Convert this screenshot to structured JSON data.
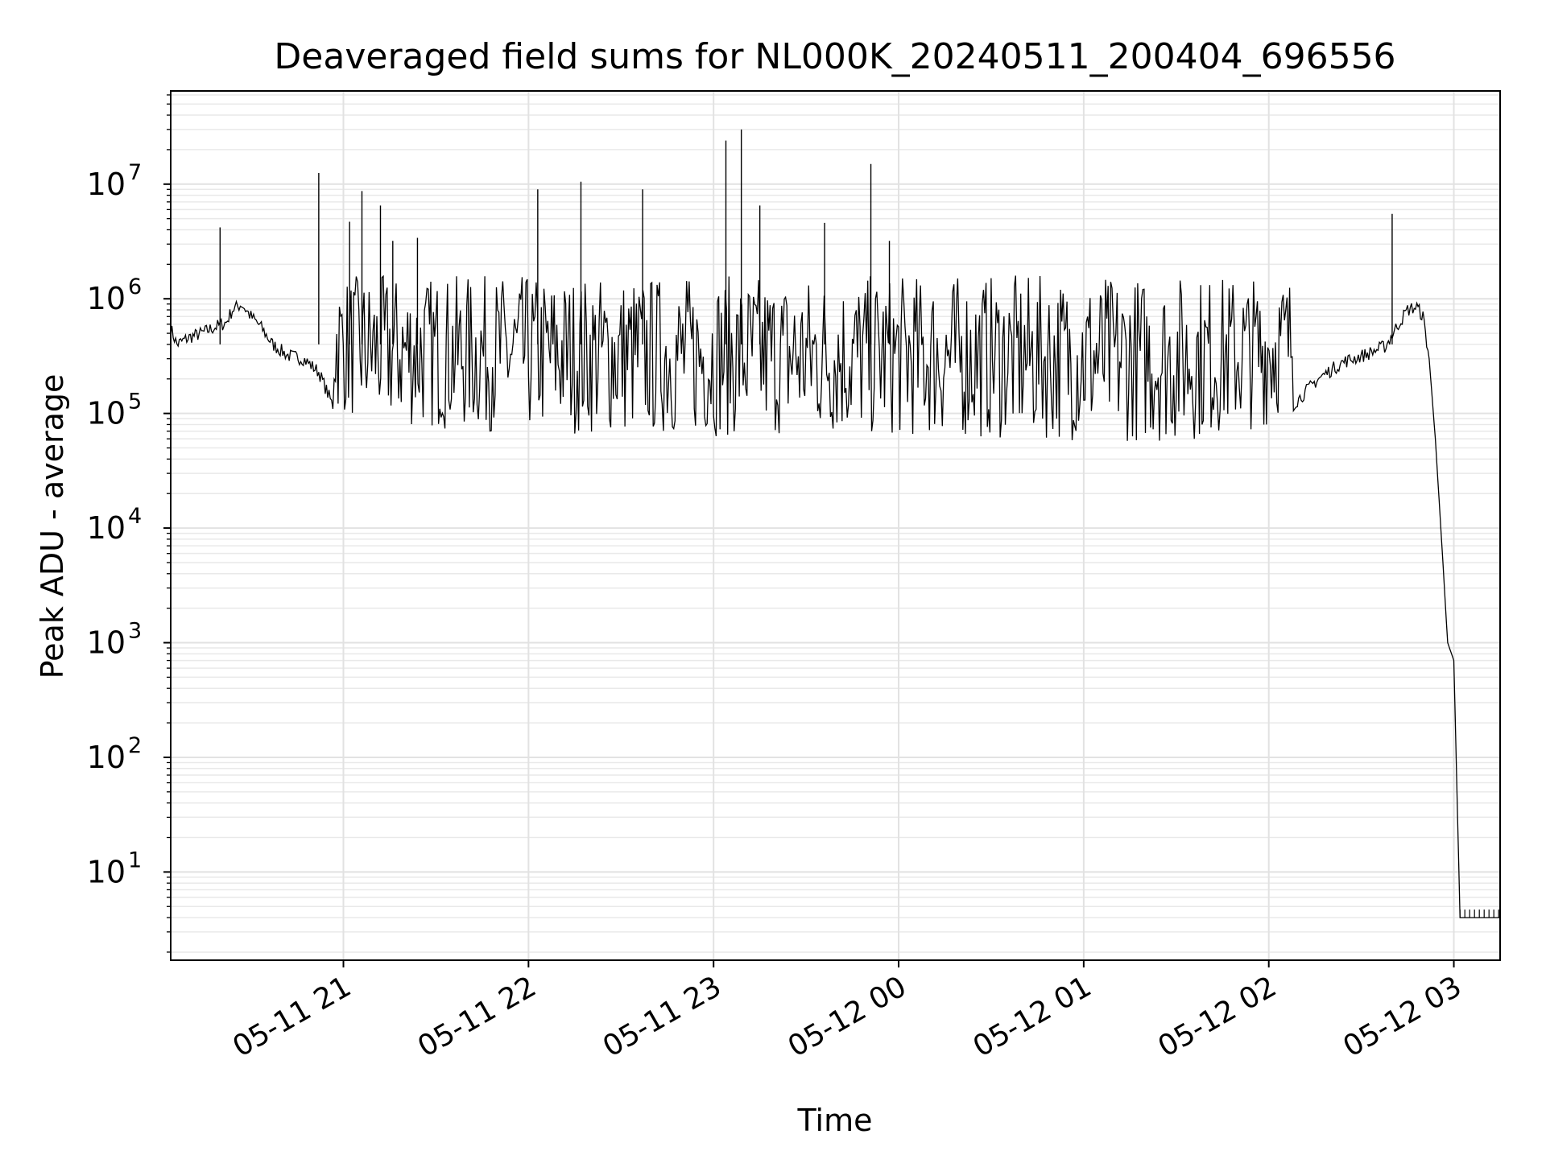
{
  "chart_data": {
    "type": "line",
    "title": "Deaveraged field sums for NL000K_20240511_200404_696556",
    "xlabel": "Time",
    "ylabel": "Peak ADU - average",
    "yscale": "log",
    "grid": "on (major and minor, light gray)",
    "line_color": "#000000",
    "xlim": [
      "2024-05-11 20:04",
      "2024-05-12 03:15"
    ],
    "ylim": [
      1.7,
      65000000
    ],
    "x_ticks": [
      {
        "label": "05-11 21",
        "time": "2024-05-11 21:00"
      },
      {
        "label": "05-11 22",
        "time": "2024-05-11 22:00"
      },
      {
        "label": "05-11 23",
        "time": "2024-05-11 23:00"
      },
      {
        "label": "05-12 00",
        "time": "2024-05-12 00:00"
      },
      {
        "label": "05-12 01",
        "time": "2024-05-12 01:00"
      },
      {
        "label": "05-12 02",
        "time": "2024-05-12 02:00"
      },
      {
        "label": "05-12 03",
        "time": "2024-05-12 03:00"
      }
    ],
    "y_ticks": [
      {
        "base": "10",
        "exp": "1",
        "value": 10
      },
      {
        "base": "10",
        "exp": "2",
        "value": 100
      },
      {
        "base": "10",
        "exp": "3",
        "value": 1000
      },
      {
        "base": "10",
        "exp": "4",
        "value": 10000
      },
      {
        "base": "10",
        "exp": "5",
        "value": 100000
      },
      {
        "base": "10",
        "exp": "6",
        "value": 1000000
      },
      {
        "base": "10",
        "exp": "7",
        "value": 10000000
      }
    ],
    "series": [
      {
        "points": [
          [
            "2024-05-11 20:04",
            550000
          ],
          [
            "2024-05-11 20:06",
            400000
          ],
          [
            "2024-05-11 20:10",
            460000
          ],
          [
            "2024-05-11 20:14",
            500000
          ],
          [
            "2024-05-11 20:18",
            560000
          ],
          [
            "2024-05-11 20:22",
            620000
          ],
          [
            "2024-05-11 20:24",
            800000
          ],
          [
            "2024-05-11 20:27",
            900000
          ],
          [
            "2024-05-11 20:30",
            700000
          ],
          [
            "2024-05-11 20:33",
            580000
          ],
          [
            "2024-05-11 20:37",
            400000
          ],
          [
            "2024-05-11 20:42",
            320000
          ],
          [
            "2024-05-11 20:47",
            300000
          ],
          [
            "2024-05-11 20:52",
            230000
          ],
          [
            "2024-05-11 20:57",
            110000
          ],
          [
            "2024-05-11 21:05",
            85000
          ],
          [
            "2024-05-11 21:20",
            75000
          ],
          [
            "2024-05-11 21:40",
            70000
          ],
          [
            "2024-05-11 22:00",
            68000
          ],
          [
            "2024-05-11 22:30",
            65000
          ],
          [
            "2024-05-11 23:00",
            63000
          ],
          [
            "2024-05-11 23:30",
            62000
          ],
          [
            "2024-05-12 00:00",
            62000
          ],
          [
            "2024-05-12 00:30",
            60000
          ],
          [
            "2024-05-12 01:00",
            58000
          ],
          [
            "2024-05-12 01:30",
            55000
          ],
          [
            "2024-05-12 01:58",
            75000
          ],
          [
            "2024-05-12 02:08",
            120000
          ],
          [
            "2024-05-12 02:16",
            200000
          ],
          [
            "2024-05-12 02:24",
            280000
          ],
          [
            "2024-05-12 02:32",
            330000
          ],
          [
            "2024-05-12 02:38",
            390000
          ],
          [
            "2024-05-12 02:42",
            600000
          ],
          [
            "2024-05-12 02:45",
            800000
          ],
          [
            "2024-05-12 02:48",
            850000
          ],
          [
            "2024-05-12 02:50",
            700000
          ],
          [
            "2024-05-12 02:52",
            300000
          ],
          [
            "2024-05-12 02:54",
            60000
          ],
          [
            "2024-05-12 02:56",
            8000
          ],
          [
            "2024-05-12 02:58",
            1000
          ],
          [
            "2024-05-12 03:00",
            700
          ],
          [
            "2024-05-12 03:02",
            4
          ],
          [
            "2024-05-12 03:15",
            4
          ]
        ]
      }
    ],
    "spikes": [
      [
        "2024-05-11 20:20",
        4200000
      ],
      [
        "2024-05-11 20:52",
        12500000
      ],
      [
        "2024-05-11 21:02",
        4700000
      ],
      [
        "2024-05-11 21:06",
        8700000
      ],
      [
        "2024-05-11 21:12",
        6500000
      ],
      [
        "2024-05-11 21:16",
        3200000
      ],
      [
        "2024-05-11 21:24",
        3400000
      ],
      [
        "2024-05-11 22:03",
        9000000
      ],
      [
        "2024-05-11 22:17",
        10500000
      ],
      [
        "2024-05-11 22:37",
        9000000
      ],
      [
        "2024-05-11 23:04",
        24000000
      ],
      [
        "2024-05-11 23:09",
        30000000
      ],
      [
        "2024-05-11 23:15",
        6500000
      ],
      [
        "2024-05-11 23:36",
        4600000
      ],
      [
        "2024-05-11 23:51",
        15000000
      ],
      [
        "2024-05-11 23:57",
        3200000
      ],
      [
        "2024-05-12 02:40",
        5500000
      ]
    ]
  }
}
